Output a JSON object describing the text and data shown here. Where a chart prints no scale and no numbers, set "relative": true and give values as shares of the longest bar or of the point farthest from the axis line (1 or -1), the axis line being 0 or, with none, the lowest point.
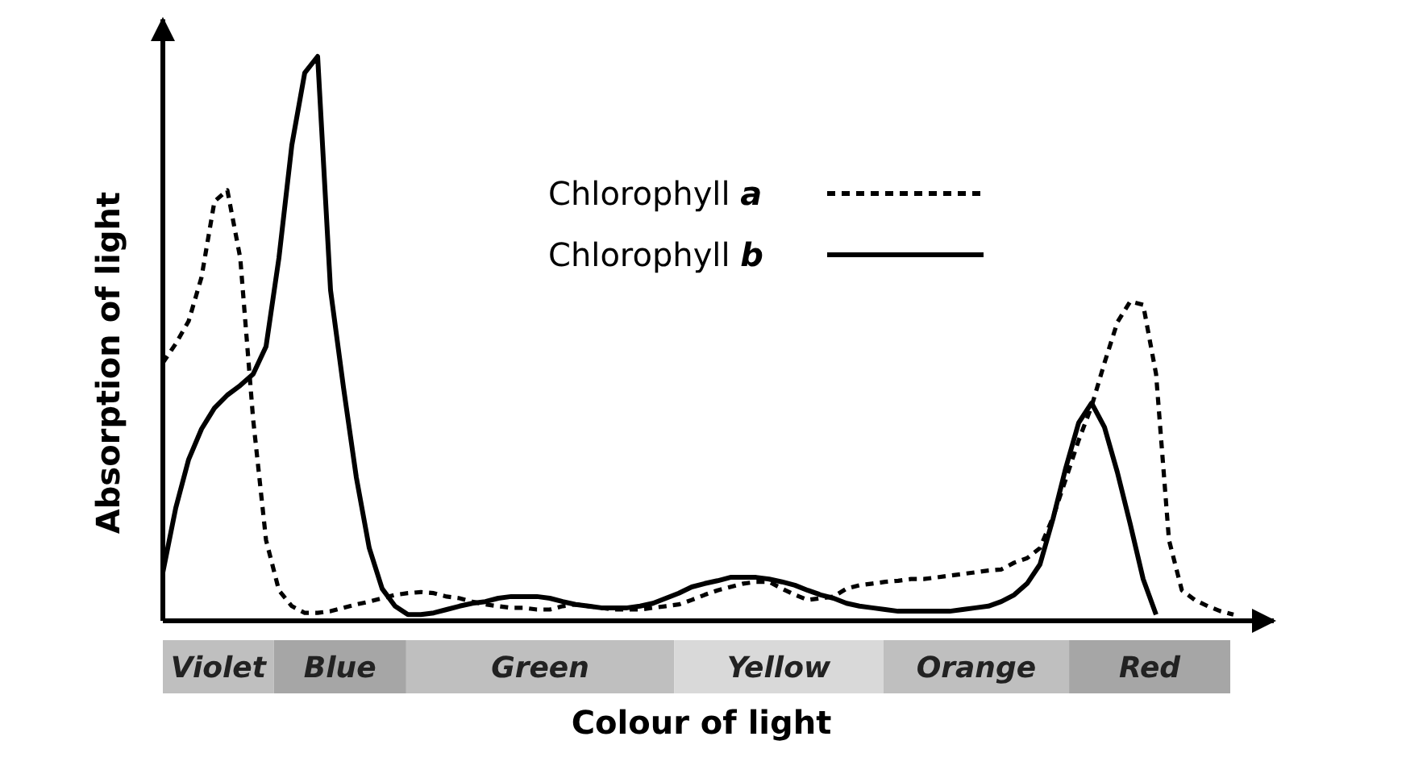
{
  "chart_data": {
    "type": "line",
    "relative": true,
    "xlabel": "Colour of light",
    "ylabel": "Absorption of light",
    "legend": "top",
    "categories": [
      null,
      null,
      null,
      null,
      null,
      null,
      null,
      null,
      null,
      null,
      null,
      null,
      null,
      null,
      null,
      null,
      null,
      null,
      null,
      null,
      null,
      null,
      null,
      null,
      null,
      null,
      null,
      null,
      null,
      null,
      null,
      null,
      null,
      null,
      null,
      null,
      null,
      null,
      null,
      null,
      null,
      null,
      null,
      null,
      null,
      null,
      null,
      null,
      null,
      null,
      null,
      null,
      null,
      null,
      null,
      null,
      null,
      null,
      null,
      null,
      null,
      null,
      null,
      null,
      null,
      null,
      null,
      null,
      null,
      null,
      null,
      null,
      null,
      null,
      null,
      null,
      null,
      null,
      null,
      null,
      null,
      null,
      null,
      null
    ],
    "annotations": [
      "Violet",
      "Blue",
      "Green",
      "Yellow",
      "Orange",
      "Red"
    ],
    "series": [
      {
        "name": "Chlorophyll a",
        "color": "#000000",
        "line_style": "dashed",
        "values": [
          0.457,
          0.491,
          0.531,
          0.609,
          0.743,
          0.763,
          0.643,
          0.357,
          0.143,
          0.054,
          0.026,
          0.014,
          0.014,
          0.017,
          0.023,
          0.029,
          0.034,
          0.04,
          0.046,
          0.049,
          0.051,
          0.049,
          0.043,
          0.04,
          0.034,
          0.029,
          0.026,
          0.023,
          0.023,
          0.02,
          0.02,
          0.026,
          0.029,
          0.026,
          0.023,
          0.02,
          0.02,
          0.02,
          0.023,
          0.026,
          0.029,
          0.037,
          0.046,
          0.054,
          0.06,
          0.066,
          0.069,
          0.069,
          0.057,
          0.046,
          0.037,
          0.04,
          0.043,
          0.057,
          0.063,
          0.066,
          0.069,
          0.071,
          0.074,
          0.074,
          0.077,
          0.08,
          0.083,
          0.086,
          0.089,
          0.091,
          0.103,
          0.111,
          0.129,
          0.183,
          0.251,
          0.32,
          0.38,
          0.457,
          0.529,
          0.566,
          0.56,
          0.437,
          0.143,
          0.054,
          0.037,
          0.026,
          0.017,
          0.011
        ]
      },
      {
        "name": "Chlorophyll b",
        "color": "#000000",
        "line_style": "solid",
        "values": [
          0.086,
          0.2,
          0.286,
          0.34,
          0.377,
          0.4,
          0.417,
          0.437,
          0.486,
          0.643,
          0.843,
          0.971,
          1,
          0.586,
          0.414,
          0.254,
          0.129,
          0.057,
          0.026,
          0.011,
          0.011,
          0.014,
          0.02,
          0.026,
          0.031,
          0.034,
          0.04,
          0.043,
          0.043,
          0.043,
          0.04,
          0.034,
          0.029,
          0.026,
          0.023,
          0.023,
          0.023,
          0.026,
          0.031,
          0.04,
          0.049,
          0.06,
          0.066,
          0.071,
          0.077,
          0.077,
          0.077,
          0.074,
          0.069,
          0.063,
          0.054,
          0.046,
          0.04,
          0.031,
          0.026,
          0.023,
          0.02,
          0.017,
          0.017,
          0.017,
          0.017,
          0.017,
          0.02,
          0.023,
          0.026,
          0.034,
          0.046,
          0.066,
          0.1,
          0.18,
          0.271,
          0.351,
          0.386,
          0.343,
          0.263,
          0.171,
          0.074,
          0.011,
          null,
          null,
          null,
          null,
          null,
          null
        ]
      }
    ]
  }
}
